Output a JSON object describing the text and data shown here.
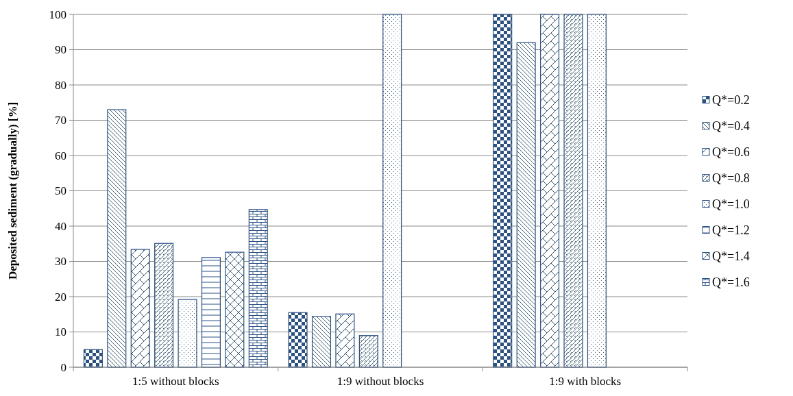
{
  "chart_data": {
    "type": "bar",
    "ylabel": "Deposited  sediment (gradually)  [%]",
    "categories": [
      "1:5 without blocks",
      "1:9 without blocks",
      "1:9 with blocks"
    ],
    "ylim": [
      0,
      100
    ],
    "yticks": [
      0,
      10,
      20,
      30,
      40,
      50,
      60,
      70,
      80,
      90,
      100
    ],
    "grid": "y",
    "legend": "right",
    "series": [
      {
        "name": "Q*=0.2",
        "color": "#2a5088",
        "values": [
          5,
          15.5,
          100
        ]
      },
      {
        "name": "Q*=0.4",
        "color": "#2a5088",
        "values": [
          73,
          14.4,
          92
        ]
      },
      {
        "name": "Q*=0.6",
        "color": "#2a5088",
        "values": [
          33.4,
          15.1,
          100
        ]
      },
      {
        "name": "Q*=0.8",
        "color": "#2a5088",
        "values": [
          35.1,
          9,
          100
        ]
      },
      {
        "name": "Q*=1.0",
        "color": "#2a5088",
        "values": [
          19.2,
          100,
          100
        ]
      },
      {
        "name": "Q*=1.2",
        "color": "#2a5088",
        "values": [
          31.1,
          null,
          null
        ]
      },
      {
        "name": "Q*=1.4",
        "color": "#2a5088",
        "values": [
          32.6,
          null,
          null
        ]
      },
      {
        "name": "Q*=1.6",
        "color": "#2a5088",
        "values": [
          44.7,
          null,
          null
        ]
      }
    ]
  }
}
